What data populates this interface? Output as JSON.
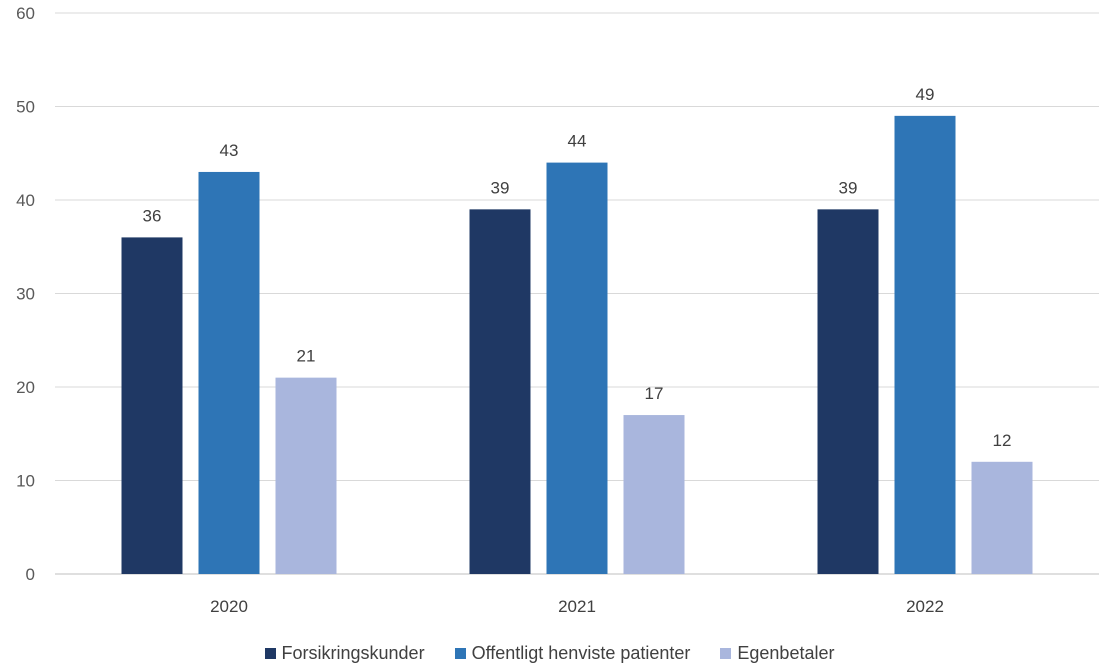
{
  "chart_data": {
    "type": "bar",
    "categories": [
      "2020",
      "2021",
      "2022"
    ],
    "series": [
      {
        "name": "Forsikringskunder",
        "values": [
          36,
          39,
          39
        ],
        "labels": [
          "36",
          "39",
          "39"
        ],
        "color": "#1f3864"
      },
      {
        "name": "Offentligt henviste patienter",
        "values": [
          43,
          44,
          49
        ],
        "labels": [
          "43",
          "44",
          "49"
        ],
        "color": "#2e75b6"
      },
      {
        "name": "Egenbetaler",
        "values": [
          21,
          17,
          12
        ],
        "labels": [
          "21",
          "17",
          "12"
        ],
        "color": "#a9b6dd"
      }
    ],
    "ylim": [
      0,
      60
    ],
    "yticks": [
      "0",
      "10",
      "20",
      "30",
      "40",
      "50",
      "60"
    ],
    "grid": true,
    "legend_position": "bottom"
  }
}
